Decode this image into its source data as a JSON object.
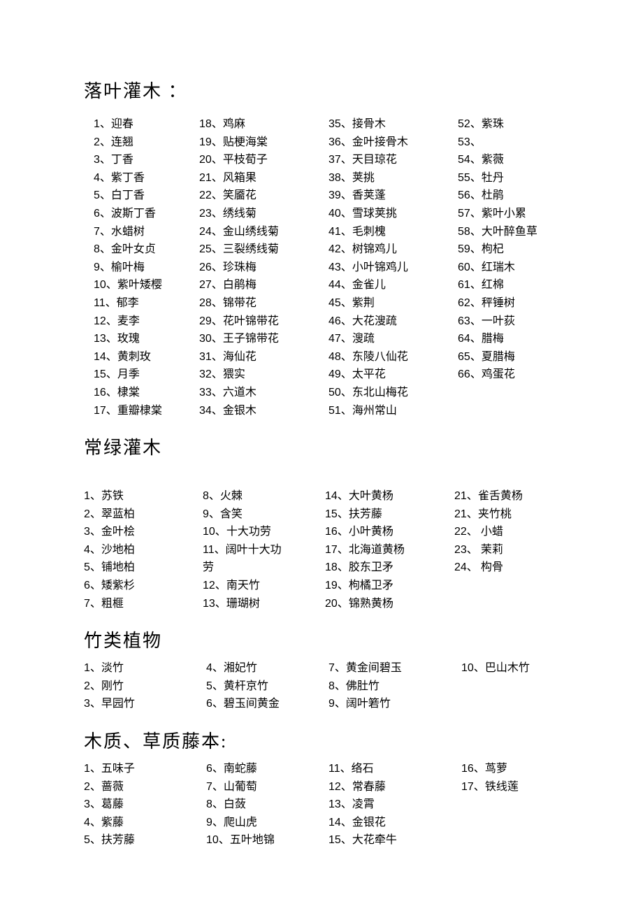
{
  "page": {
    "background_color": "#ffffff",
    "text_color": "#000000",
    "title_fontsize": 26,
    "item_fontsize": 16,
    "line_height": 1.6
  },
  "sections": [
    {
      "title": "落叶灌木 ：",
      "class": "s1",
      "columns": [
        {
          "indent": true,
          "items": [
            {
              "n": "1",
              "name": "迎春"
            },
            {
              "n": "2",
              "name": "连翘"
            },
            {
              "n": "3",
              "name": "丁香"
            },
            {
              "n": "4",
              "name": "紫丁香"
            },
            {
              "n": "5",
              "name": "白丁香"
            },
            {
              "n": "6",
              "name": "波斯丁香"
            },
            {
              "n": "7",
              "name": "水蜡树"
            },
            {
              "n": "8",
              "name": "金叶女贞"
            },
            {
              "n": "9",
              "name": "榆叶梅"
            },
            {
              "n": "10",
              "name": "紫叶矮樱"
            },
            {
              "n": "11",
              "name": "郁李"
            },
            {
              "n": "12",
              "name": "麦李"
            },
            {
              "n": "13",
              "name": "玫瑰"
            },
            {
              "n": "14",
              "name": "黄刺玫"
            },
            {
              "n": "15",
              "name": "月季"
            },
            {
              "n": "16",
              "name": "棣棠"
            },
            {
              "n": "17",
              "name": "重瓣棣棠"
            }
          ]
        },
        {
          "indent": false,
          "items": [
            {
              "n": "18",
              "name": "鸡麻"
            },
            {
              "n": "19",
              "name": "贴梗海棠"
            },
            {
              "n": "20",
              "name": "平枝荀子"
            },
            {
              "n": "21",
              "name": "风箱果"
            },
            {
              "n": "22",
              "name": "笑靥花"
            },
            {
              "n": "23",
              "name": "绣线菊"
            },
            {
              "n": "24",
              "name": "金山绣线菊"
            },
            {
              "n": "25",
              "name": "三裂绣线菊"
            },
            {
              "n": "26",
              "name": "珍珠梅"
            },
            {
              "n": "27",
              "name": "白鹃梅"
            },
            {
              "n": "28",
              "name": "锦带花"
            },
            {
              "n": "29",
              "name": "花叶锦带花"
            },
            {
              "n": "30",
              "name": "王子锦带花"
            },
            {
              "n": "31",
              "name": "海仙花"
            },
            {
              "n": "32",
              "name": "猥实"
            },
            {
              "n": "33",
              "name": "六道木"
            },
            {
              "n": "34",
              "name": "金银木"
            }
          ]
        },
        {
          "indent": false,
          "items": [
            {
              "n": "35",
              "name": "接骨木"
            },
            {
              "n": "36",
              "name": "金叶接骨木"
            },
            {
              "n": "37",
              "name": "天目琼花"
            },
            {
              "n": "38",
              "name": "荚挑"
            },
            {
              "n": "39",
              "name": "香荚蓬"
            },
            {
              "n": "40",
              "name": "雪球荚挑"
            },
            {
              "n": "41",
              "name": "毛刺槐"
            },
            {
              "n": "42",
              "name": "树锦鸡儿"
            },
            {
              "n": "43",
              "name": "小叶锦鸡儿"
            },
            {
              "n": "44",
              "name": "金雀儿"
            },
            {
              "n": "45",
              "name": "紫荆"
            },
            {
              "n": "46",
              "name": "大花溲疏"
            },
            {
              "n": "47",
              "name": "溲疏"
            },
            {
              "n": "48",
              "name": "东陵八仙花"
            },
            {
              "n": "49",
              "name": "太平花"
            },
            {
              "n": "50",
              "name": "东北山梅花"
            },
            {
              "n": "51",
              "name": "海州常山"
            }
          ]
        },
        {
          "indent": false,
          "items": [
            {
              "n": "52",
              "name": "紫珠"
            },
            {
              "n": "53",
              "name": ""
            },
            {
              "n": "54",
              "name": "紫薇"
            },
            {
              "n": "55",
              "name": "牡丹"
            },
            {
              "n": "56",
              "name": "杜鹃"
            },
            {
              "n": "57",
              "name": "紫叶小累"
            },
            {
              "n": "58",
              "name": "大叶醉鱼草"
            },
            {
              "n": "59",
              "name": "枸杞"
            },
            {
              "n": "60",
              "name": "红瑞木"
            },
            {
              "n": "61",
              "name": "红棉"
            },
            {
              "n": "62",
              "name": "秤锤树"
            },
            {
              "n": "63",
              "name": "一叶荻"
            },
            {
              "n": "64",
              "name": "腊梅"
            },
            {
              "n": "65",
              "name": "夏腊梅"
            },
            {
              "n": "66",
              "name": "鸡蛋花"
            }
          ]
        }
      ]
    },
    {
      "title": "常绿灌木",
      "class": "s2",
      "columns": [
        {
          "indent": false,
          "items": [
            {
              "n": "1",
              "name": "苏铁"
            },
            {
              "n": "2",
              "name": "翠蓝柏"
            },
            {
              "n": "3",
              "name": "金叶桧"
            },
            {
              "n": "4",
              "name": "沙地柏"
            },
            {
              "n": "5",
              "name": "铺地柏"
            },
            {
              "n": "6",
              "name": "矮紫杉"
            },
            {
              "n": "7",
              "name": "粗榧"
            }
          ]
        },
        {
          "indent": false,
          "items": [
            {
              "n": "8",
              "name": "火棘"
            },
            {
              "n": "9",
              "name": "含笑"
            },
            {
              "n": "10",
              "name": "十大功劳"
            },
            {
              "n": "11",
              "name": "阔叶十大功劳",
              "wrap": true
            },
            {
              "n": "12",
              "name": "南天竹"
            },
            {
              "n": "13",
              "name": "珊瑚树"
            }
          ]
        },
        {
          "indent": false,
          "items": [
            {
              "n": "14",
              "name": "大叶黄杨"
            },
            {
              "n": "15",
              "name": "扶芳藤"
            },
            {
              "n": "16",
              "name": "小叶黄杨"
            },
            {
              "n": "17",
              "name": "北海道黄杨"
            },
            {
              "n": "18",
              "name": "胶东卫矛"
            },
            {
              "n": "19",
              "name": "枸橘卫矛"
            },
            {
              "n": "20",
              "name": "锦熟黄杨"
            }
          ]
        },
        {
          "indent": false,
          "items": [
            {
              "n": "21",
              "name": "雀舌黄杨"
            },
            {
              "n": "21",
              "name": "夹竹桃"
            },
            {
              "n": "22",
              "name": " 小蜡"
            },
            {
              "n": "23",
              "name": " 茉莉"
            },
            {
              "n": "24",
              "name": " 构骨"
            }
          ]
        }
      ]
    },
    {
      "title": "竹类植物",
      "class": "s3",
      "columns": [
        {
          "indent": false,
          "items": [
            {
              "n": "1",
              "name": "淡竹"
            },
            {
              "n": "2",
              "name": "刚竹"
            },
            {
              "n": "3",
              "name": "早园竹"
            }
          ]
        },
        {
          "indent": false,
          "items": [
            {
              "n": "4",
              "name": "湘妃竹"
            },
            {
              "n": "5",
              "name": "黄杆京竹"
            },
            {
              "n": "6",
              "name": "碧玉间黄金"
            }
          ]
        },
        {
          "indent": false,
          "items": [
            {
              "n": "7",
              "name": "黄金间碧玉"
            },
            {
              "n": "8",
              "name": "佛肚竹"
            },
            {
              "n": "9",
              "name": "阔叶箬竹"
            }
          ]
        },
        {
          "indent": false,
          "items": [
            {
              "n": "10",
              "name": "巴山木竹"
            }
          ]
        }
      ]
    },
    {
      "title": "木质、草质藤本:",
      "class": "s4",
      "columns": [
        {
          "indent": false,
          "items": [
            {
              "n": "1",
              "name": "五味子"
            },
            {
              "n": "2",
              "name": "蔷薇"
            },
            {
              "n": "3",
              "name": "葛藤"
            },
            {
              "n": "4",
              "name": "紫藤"
            },
            {
              "n": "5",
              "name": "扶芳藤"
            }
          ]
        },
        {
          "indent": false,
          "items": [
            {
              "n": "6",
              "name": "南蛇藤"
            },
            {
              "n": "7",
              "name": "山葡萄"
            },
            {
              "n": "8",
              "name": "白蔹"
            },
            {
              "n": "9",
              "name": "爬山虎"
            },
            {
              "n": "10",
              "name": "五叶地锦"
            }
          ]
        },
        {
          "indent": false,
          "items": [
            {
              "n": "11",
              "name": "络石"
            },
            {
              "n": "12",
              "name": "常春藤"
            },
            {
              "n": "13",
              "name": "凌霄"
            },
            {
              "n": "14",
              "name": "金银花"
            },
            {
              "n": "15",
              "name": "大花牵牛"
            }
          ]
        },
        {
          "indent": false,
          "items": [
            {
              "n": "16",
              "name": "茑萝"
            },
            {
              "n": "17",
              "name": "铁线莲"
            }
          ]
        }
      ]
    }
  ]
}
